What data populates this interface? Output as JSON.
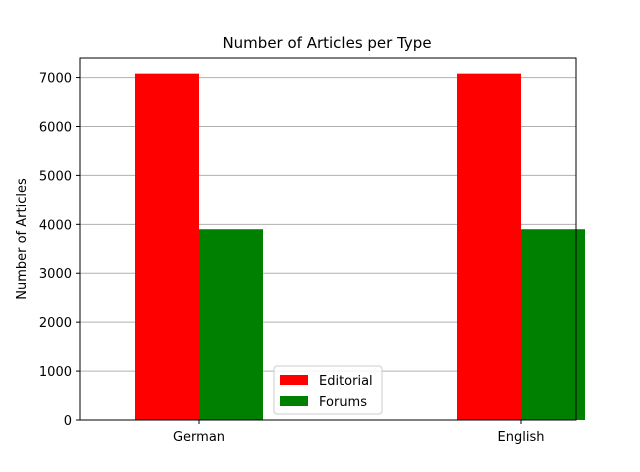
{
  "chart_data": {
    "type": "bar",
    "title": "Number of Articles per Type",
    "xlabel": "",
    "ylabel": "Number of Articles",
    "categories": [
      "German",
      "English"
    ],
    "series": [
      {
        "name": "Editorial",
        "color": "#ff0000",
        "values": [
          7080,
          7080
        ]
      },
      {
        "name": "Forums",
        "color": "#008000",
        "values": [
          3900,
          3900
        ]
      }
    ],
    "ylim": [
      0,
      7400
    ],
    "yticks": [
      "0",
      "1000",
      "2000",
      "3000",
      "4000",
      "5000",
      "6000",
      "7000"
    ],
    "grid": "horizontal",
    "legend_position": "lower-center"
  }
}
